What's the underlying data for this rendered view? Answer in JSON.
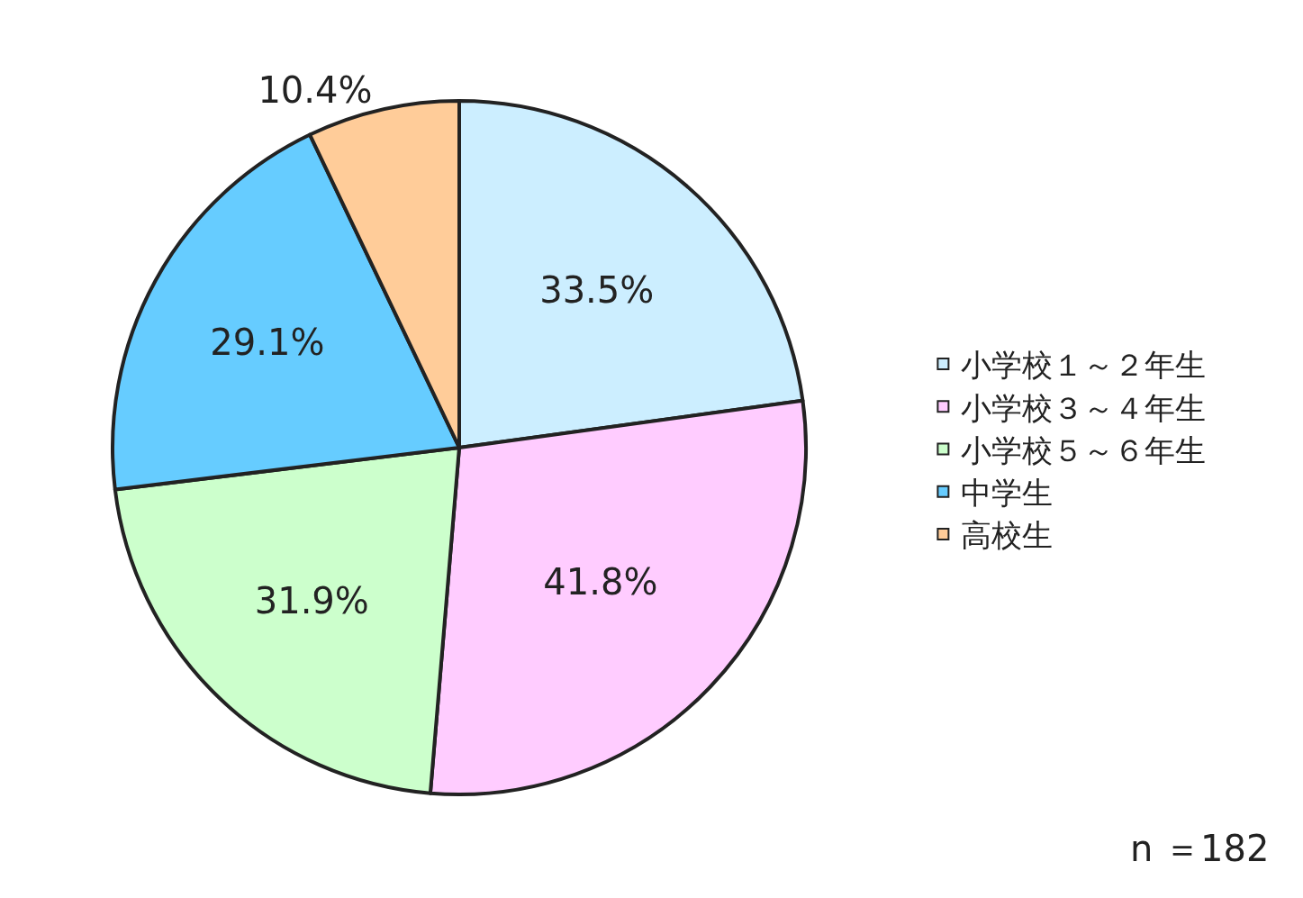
{
  "chart_data": {
    "type": "pie",
    "categories": [
      "小学校１～２年生",
      "小学校３～４年生",
      "小学校５～６年生",
      "中学生",
      "高校生"
    ],
    "values": [
      33.5,
      41.8,
      31.9,
      29.1,
      10.4
    ],
    "value_labels": [
      "33.5%",
      "41.8%",
      "31.9%",
      "29.1%",
      "10.4%"
    ],
    "colors": [
      "#cceeff",
      "#ffccff",
      "#ccffcc",
      "#66ccff",
      "#ffcc99"
    ],
    "legend": "right",
    "annotations": [
      "n ＝182"
    ]
  }
}
